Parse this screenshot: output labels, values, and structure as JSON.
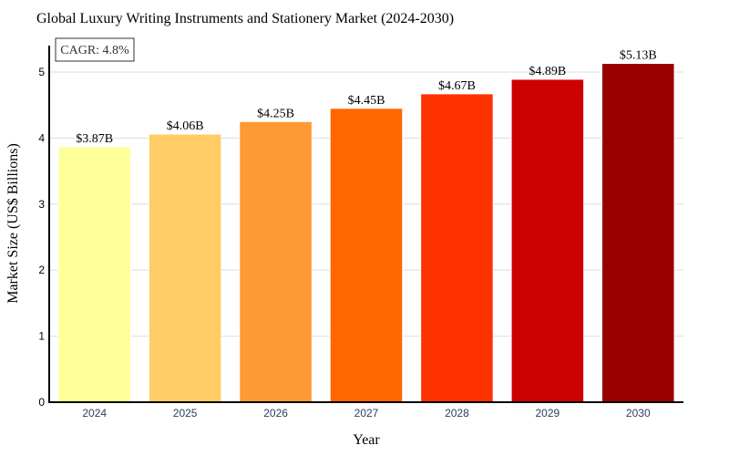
{
  "chart_data": {
    "type": "bar",
    "title": "Global Luxury Writing Instruments and Stationery Market (2024-2030)",
    "xlabel": "Year",
    "ylabel": "Market Size (US$ Billions)",
    "categories": [
      "2024",
      "2025",
      "2026",
      "2027",
      "2028",
      "2029",
      "2030"
    ],
    "values": [
      3.87,
      4.06,
      4.25,
      4.45,
      4.67,
      4.89,
      5.13
    ],
    "data_labels": [
      "$3.87B",
      "$4.06B",
      "$4.25B",
      "$4.45B",
      "$4.67B",
      "$4.89B",
      "$5.13B"
    ],
    "bar_colors": [
      "#ffff99",
      "#ffcc66",
      "#ff9933",
      "#ff6600",
      "#ff3300",
      "#cc0000",
      "#990000"
    ],
    "ylim": [
      0,
      5.4
    ],
    "yticks": [
      0,
      1,
      2,
      3,
      4,
      5
    ],
    "grid": true,
    "legend": false,
    "annotation": "CAGR: 4.8%"
  }
}
